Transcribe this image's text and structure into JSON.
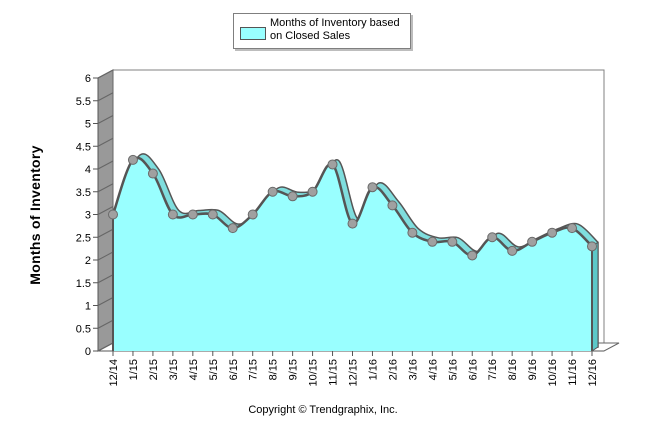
{
  "chart_data": {
    "type": "area",
    "title": "",
    "xlabel": "",
    "ylabel": "Months of Inventory",
    "ylim": [
      0,
      6
    ],
    "ytick_step": 0.5,
    "yticks": [
      "0",
      "0.5",
      "1",
      "1.5",
      "2",
      "2.5",
      "3",
      "3.5",
      "4",
      "4.5",
      "5",
      "5.5",
      "6"
    ],
    "categories": [
      "12/14",
      "1/15",
      "2/15",
      "3/15",
      "4/15",
      "5/15",
      "6/15",
      "7/15",
      "8/15",
      "9/15",
      "10/15",
      "11/15",
      "12/15",
      "1/16",
      "2/16",
      "3/16",
      "4/16",
      "5/16",
      "6/16",
      "7/16",
      "8/16",
      "9/16",
      "10/16",
      "11/16",
      "12/16"
    ],
    "series": [
      {
        "name": "Months of Inventory based on Closed Sales",
        "values": [
          3.0,
          4.2,
          3.9,
          3.0,
          3.0,
          3.0,
          2.7,
          3.0,
          3.5,
          3.4,
          3.5,
          4.1,
          2.8,
          3.6,
          3.2,
          2.6,
          2.4,
          2.4,
          2.1,
          2.5,
          2.2,
          2.4,
          2.6,
          2.7,
          2.3
        ]
      }
    ],
    "legend": {
      "position": "top-center",
      "label": "Months of Inventory based on Closed Sales"
    },
    "colors": {
      "fill": "#99ffff",
      "line": "#555555",
      "marker": "#a0a0a0",
      "wall": "#ffffff",
      "side": "#999999"
    }
  },
  "footer": {
    "copyright": "Copyright © Trendgraphix, Inc."
  }
}
